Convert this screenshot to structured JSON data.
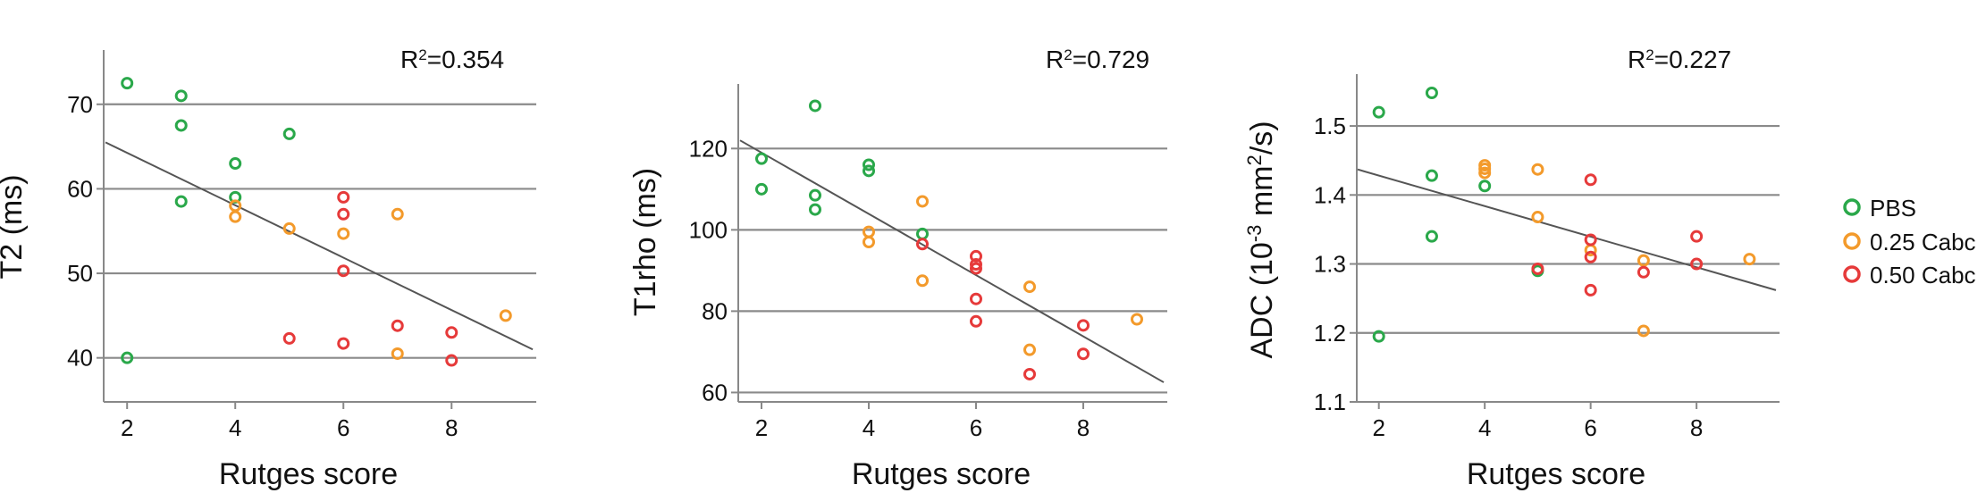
{
  "legend": {
    "items": [
      {
        "label": "PBS",
        "color": "#2aa84a"
      },
      {
        "label": "0.25 Cabc",
        "color": "#f39a2b"
      },
      {
        "label": "0.50 Cabc",
        "color": "#e63a3a"
      }
    ]
  },
  "chart_data": [
    {
      "type": "scatter",
      "xlabel": "Rutges score",
      "ylabel": "T2 (ms)",
      "r2_text": "0.354",
      "xlim": [
        1.6,
        9.5
      ],
      "ylim": [
        35,
        76
      ],
      "xticks": [
        2,
        4,
        6,
        8
      ],
      "yticks": [
        40,
        50,
        60,
        70
      ],
      "grid": "horizontal",
      "fit_line": {
        "x": [
          1.6,
          9.5
        ],
        "y": [
          65.5,
          41.0
        ]
      },
      "series": [
        {
          "name": "PBS",
          "color": "#2aa84a",
          "points": [
            [
              2,
              72.5
            ],
            [
              3,
              71
            ],
            [
              3,
              67.5
            ],
            [
              3,
              58.5
            ],
            [
              4,
              63
            ],
            [
              4,
              59
            ],
            [
              5,
              66.5
            ],
            [
              2,
              40
            ]
          ]
        },
        {
          "name": "0.25 Cabc",
          "color": "#f39a2b",
          "points": [
            [
              4,
              58
            ],
            [
              4,
              56.7
            ],
            [
              5,
              55.3
            ],
            [
              6,
              54.7
            ],
            [
              7,
              57
            ],
            [
              7,
              40.5
            ],
            [
              9,
              45
            ]
          ]
        },
        {
          "name": "0.50 Cabc",
          "color": "#e63a3a",
          "points": [
            [
              6,
              59
            ],
            [
              6,
              57
            ],
            [
              6,
              50.3
            ],
            [
              5,
              42.3
            ],
            [
              6,
              41.7
            ],
            [
              7,
              43.8
            ],
            [
              8,
              43
            ],
            [
              8,
              39.7
            ]
          ]
        }
      ]
    },
    {
      "type": "scatter",
      "xlabel": "Rutges score",
      "ylabel": "T1rho (ms)",
      "r2_text": "0.729",
      "xlim": [
        1.6,
        9.5
      ],
      "ylim": [
        59,
        135
      ],
      "xticks": [
        2,
        4,
        6,
        8
      ],
      "yticks": [
        60,
        80,
        100,
        120
      ],
      "grid": "horizontal",
      "fit_line": {
        "x": [
          1.6,
          9.5
        ],
        "y": [
          122,
          62.5
        ]
      },
      "series": [
        {
          "name": "PBS",
          "color": "#2aa84a",
          "points": [
            [
              2,
              117.5
            ],
            [
              2,
              110
            ],
            [
              3,
              130.5
            ],
            [
              3,
              108.5
            ],
            [
              3,
              105
            ],
            [
              4,
              116
            ],
            [
              4,
              114.5
            ],
            [
              5,
              99
            ]
          ]
        },
        {
          "name": "0.25 Cabc",
          "color": "#f39a2b",
          "points": [
            [
              4,
              99.5
            ],
            [
              4,
              97
            ],
            [
              5,
              107
            ],
            [
              5,
              87.5
            ],
            [
              7,
              86
            ],
            [
              7,
              70.5
            ],
            [
              9,
              78
            ]
          ]
        },
        {
          "name": "0.50 Cabc",
          "color": "#e63a3a",
          "points": [
            [
              5,
              96.5
            ],
            [
              6,
              93.5
            ],
            [
              6,
              91.5
            ],
            [
              6,
              90.5
            ],
            [
              6,
              83
            ],
            [
              6,
              77.5
            ],
            [
              7,
              64.5
            ],
            [
              8,
              76.5
            ],
            [
              8,
              69.5
            ]
          ]
        }
      ]
    },
    {
      "type": "scatter",
      "xlabel": "Rutges score",
      "ylabel": "ADC (10-3 mm2/s)",
      "ylabel_parts": {
        "prefix": "ADC (10",
        "sup1": "-3",
        "middle": " mm",
        "sup2": "2",
        "suffix": "/s)"
      },
      "r2_text": "0.227",
      "xlim": [
        1.6,
        9.5
      ],
      "ylim": [
        1.1,
        1.57
      ],
      "xticks": [
        2,
        4,
        6,
        8
      ],
      "yticks": [
        1.1,
        1.2,
        1.3,
        1.4,
        1.5
      ],
      "ytick_labels": [
        "1.1",
        "1.2",
        "1.3",
        "1.4",
        "1.5"
      ],
      "grid": "horizontal",
      "fit_line": {
        "x": [
          1.6,
          9.5
        ],
        "y": [
          1.437,
          1.262
        ]
      },
      "series": [
        {
          "name": "PBS",
          "color": "#2aa84a",
          "points": [
            [
              2,
              1.52
            ],
            [
              2,
              1.195
            ],
            [
              3,
              1.548
            ],
            [
              3,
              1.428
            ],
            [
              3,
              1.34
            ],
            [
              4,
              1.413
            ],
            [
              5,
              1.29
            ]
          ]
        },
        {
          "name": "0.25 Cabc",
          "color": "#f39a2b",
          "points": [
            [
              4,
              1.443
            ],
            [
              4,
              1.438
            ],
            [
              4,
              1.432
            ],
            [
              5,
              1.437
            ],
            [
              5,
              1.368
            ],
            [
              6,
              1.32
            ],
            [
              7,
              1.305
            ],
            [
              7,
              1.203
            ],
            [
              9,
              1.307
            ]
          ]
        },
        {
          "name": "0.50 Cabc",
          "color": "#e63a3a",
          "points": [
            [
              5,
              1.293
            ],
            [
              6,
              1.422
            ],
            [
              6,
              1.335
            ],
            [
              6,
              1.31
            ],
            [
              6,
              1.262
            ],
            [
              7,
              1.288
            ],
            [
              8,
              1.34
            ],
            [
              8,
              1.3
            ]
          ]
        }
      ]
    }
  ]
}
